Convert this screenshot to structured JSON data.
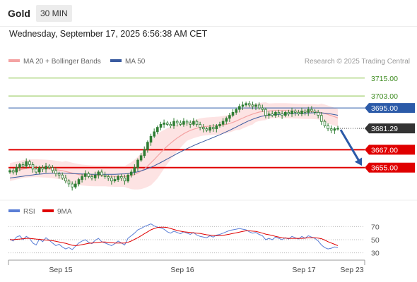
{
  "header": {
    "symbol": "Gold",
    "timeframe": "30 MIN",
    "datetime": "Wednesday, September 17, 2025 6:56:38 AM CET"
  },
  "legend": {
    "ma20_bb": "MA 20 + Bollinger Bands",
    "ma50": "MA 50",
    "credit": "Research © 2025 Trading Central",
    "rsi": "RSI",
    "ma9": "9MA"
  },
  "colors": {
    "candle": "#2e7d32",
    "bollinger_fill": "#fde3e3",
    "ma20": "#f4a3a3",
    "ma50": "#3a5ba0",
    "resistance_line": "#8bc34a",
    "pivot_line": "#2b5aa8",
    "support_line": "#e00000",
    "price_label": "#333333",
    "rsi": "#5b7fd6",
    "rsi_ma": "#e00000",
    "arrow": "#2b5aa8"
  },
  "chart_data": [
    {
      "type": "candlestick",
      "ylim": [
        3635,
        3722
      ],
      "x_ticks": [
        "Sep 15",
        "Sep 16",
        "Sep 17",
        "Sep 23"
      ],
      "levels": [
        {
          "value": 3715.0,
          "label": "3715.00",
          "kind": "resistance"
        },
        {
          "value": 3703.0,
          "label": "3703.00",
          "kind": "resistance"
        },
        {
          "value": 3695.0,
          "label": "3695.00",
          "kind": "pivot"
        },
        {
          "value": 3681.29,
          "label": "3681.29",
          "kind": "last_price"
        },
        {
          "value": 3667.0,
          "label": "3667.00",
          "kind": "support"
        },
        {
          "value": 3655.0,
          "label": "3655.00",
          "kind": "support"
        }
      ],
      "closes": [
        3653,
        3652,
        3655,
        3657,
        3656,
        3659,
        3657,
        3654,
        3652,
        3655,
        3654,
        3656,
        3655,
        3653,
        3651,
        3650,
        3648,
        3646,
        3644,
        3642,
        3644,
        3647,
        3649,
        3651,
        3649,
        3648,
        3650,
        3652,
        3650,
        3649,
        3648,
        3646,
        3647,
        3649,
        3648,
        3646,
        3650,
        3652,
        3655,
        3660,
        3663,
        3667,
        3672,
        3676,
        3679,
        3682,
        3684,
        3685,
        3684,
        3683,
        3686,
        3685,
        3684,
        3686,
        3685,
        3684,
        3686,
        3684,
        3682,
        3681,
        3680,
        3682,
        3681,
        3683,
        3684,
        3686,
        3688,
        3690,
        3692,
        3694,
        3696,
        3697,
        3698,
        3697,
        3696,
        3697,
        3695,
        3694,
        3690,
        3691,
        3690,
        3692,
        3691,
        3690,
        3692,
        3691,
        3693,
        3692,
        3691,
        3693,
        3692,
        3694,
        3693,
        3692,
        3690,
        3686,
        3683,
        3681,
        3680,
        3681,
        3681.29
      ],
      "ma20": [
        3652,
        3652.5,
        3653,
        3653.5,
        3654,
        3654.3,
        3654.5,
        3654.6,
        3654.6,
        3654.5,
        3654.4,
        3654.3,
        3654.1,
        3653.9,
        3653.6,
        3653.3,
        3652.9,
        3652.4,
        3651.9,
        3651.3,
        3650.8,
        3650.3,
        3650,
        3649.8,
        3649.6,
        3649.5,
        3649.4,
        3649.4,
        3649.4,
        3649.4,
        3649.3,
        3649.2,
        3649.1,
        3649.1,
        3649.1,
        3649,
        3649.2,
        3649.6,
        3650.3,
        3651.3,
        3652.6,
        3654.2,
        3656.1,
        3658.2,
        3660.4,
        3662.7,
        3665,
        3667.3,
        3669.4,
        3671.3,
        3673.1,
        3674.8,
        3676.3,
        3677.7,
        3678.9,
        3679.9,
        3680.7,
        3681.4,
        3682,
        3682.4,
        3682.6,
        3682.8,
        3682.9,
        3683.1,
        3683.3,
        3683.6,
        3684,
        3684.6,
        3685.3,
        3686.2,
        3687.2,
        3688.2,
        3689.2,
        3690.1,
        3690.9,
        3691.6,
        3692.2,
        3692.6,
        3692.8,
        3693,
        3693.1,
        3693.2,
        3693.2,
        3693.2,
        3693.2,
        3693.1,
        3693,
        3692.9,
        3692.8,
        3692.7,
        3692.6,
        3692.6,
        3692.6,
        3692.5,
        3692.3,
        3691.9,
        3691.3,
        3690.6,
        3689.9,
        3689.1,
        3688.3
      ],
      "ma50": [
        3648,
        3648.3,
        3648.6,
        3648.9,
        3649.2,
        3649.5,
        3649.8,
        3650.1,
        3650.4,
        3650.6,
        3650.8,
        3651,
        3651.1,
        3651.2,
        3651.3,
        3651.3,
        3651.3,
        3651.2,
        3651.1,
        3651,
        3650.9,
        3650.8,
        3650.7,
        3650.6,
        3650.6,
        3650.5,
        3650.5,
        3650.5,
        3650.5,
        3650.5,
        3650.5,
        3650.5,
        3650.5,
        3650.6,
        3650.7,
        3650.8,
        3651,
        3651.3,
        3651.7,
        3652.2,
        3652.8,
        3653.5,
        3654.3,
        3655.2,
        3656.2,
        3657.3,
        3658.4,
        3659.6,
        3660.8,
        3662,
        3663.2,
        3664.4,
        3665.5,
        3666.6,
        3667.7,
        3668.7,
        3669.7,
        3670.7,
        3671.6,
        3672.5,
        3673.4,
        3674.3,
        3675.2,
        3676.1,
        3677,
        3678,
        3679,
        3680,
        3681.1,
        3682.2,
        3683.3,
        3684.4,
        3685.5,
        3686.5,
        3687.4,
        3688.2,
        3688.9,
        3689.5,
        3689.9,
        3690.2,
        3690.4,
        3690.6,
        3690.7,
        3690.8,
        3690.9,
        3691,
        3691.1,
        3691.2,
        3691.3,
        3691.4,
        3691.5,
        3691.6,
        3691.7,
        3691.8,
        3691.8,
        3691.7,
        3691.5,
        3691.2,
        3690.9,
        3690.5,
        3690.1
      ],
      "bb_width": [
        6,
        6,
        6,
        6,
        6,
        6,
        6,
        6,
        6,
        6,
        6,
        6,
        6,
        6,
        6,
        6,
        6,
        7,
        7,
        7,
        7,
        7,
        7,
        7,
        7,
        7,
        7,
        7,
        7,
        7,
        7,
        7,
        7,
        7,
        7,
        7,
        8,
        9,
        10,
        11,
        12,
        13,
        14,
        15,
        15,
        15,
        14,
        13,
        12,
        11,
        10,
        9,
        8,
        7,
        6,
        6,
        6,
        6,
        6,
        6,
        6,
        6,
        6,
        6,
        6,
        6,
        6,
        6,
        6,
        6,
        7,
        7,
        7,
        7,
        7,
        6,
        6,
        6,
        6,
        5,
        5,
        5,
        5,
        5,
        5,
        5,
        5,
        5,
        5,
        5,
        5,
        5,
        5,
        5,
        5,
        6,
        6,
        6,
        6,
        6,
        6
      ]
    },
    {
      "type": "line",
      "title": "RSI",
      "ylim": [
        20,
        80
      ],
      "y_ticks": [
        70,
        50,
        30
      ],
      "series": [
        {
          "name": "RSI",
          "values": [
            51,
            48,
            54,
            56,
            50,
            55,
            52,
            45,
            42,
            51,
            47,
            53,
            49,
            45,
            41,
            43,
            39,
            36,
            38,
            35,
            40,
            45,
            48,
            50,
            46,
            44,
            49,
            52,
            47,
            45,
            43,
            41,
            44,
            48,
            45,
            42,
            52,
            56,
            60,
            65,
            67,
            70,
            72,
            74,
            71,
            69,
            68,
            66,
            62,
            60,
            63,
            61,
            59,
            62,
            60,
            58,
            61,
            57,
            55,
            54,
            53,
            56,
            54,
            57,
            58,
            60,
            62,
            64,
            65,
            66,
            67,
            66,
            65,
            62,
            60,
            61,
            58,
            56,
            50,
            52,
            50,
            54,
            52,
            50,
            53,
            51,
            55,
            53,
            51,
            55,
            52,
            56,
            54,
            52,
            48,
            42,
            38,
            36,
            37,
            39,
            38
          ]
        },
        {
          "name": "9MA",
          "values": [
            50,
            50,
            50.5,
            51,
            51.5,
            52,
            52,
            51.5,
            51,
            50.5,
            50,
            49.5,
            49,
            48.5,
            47.5,
            46.5,
            45.5,
            44.5,
            43,
            41.5,
            41,
            41.5,
            42.5,
            43.5,
            44.5,
            45,
            45.5,
            46,
            46.5,
            46.5,
            46,
            45.5,
            45,
            45,
            45,
            45,
            46,
            48,
            50.5,
            53,
            56,
            59,
            62,
            65,
            67,
            68.5,
            69,
            69,
            68.5,
            67,
            65.5,
            64,
            63,
            62,
            61.5,
            61,
            60.5,
            60,
            59.5,
            58.5,
            57.5,
            57,
            56.5,
            56,
            56,
            56.5,
            57.5,
            58.5,
            59.5,
            60.5,
            61.5,
            62.5,
            63.5,
            63.5,
            63,
            62.5,
            61.5,
            60,
            58.5,
            57.5,
            56.5,
            55,
            54,
            53,
            52.5,
            52,
            52,
            52,
            52,
            52,
            52.5,
            53,
            53,
            53,
            52.5,
            51.5,
            49.5,
            47,
            45,
            43,
            41
          ]
        }
      ]
    }
  ]
}
